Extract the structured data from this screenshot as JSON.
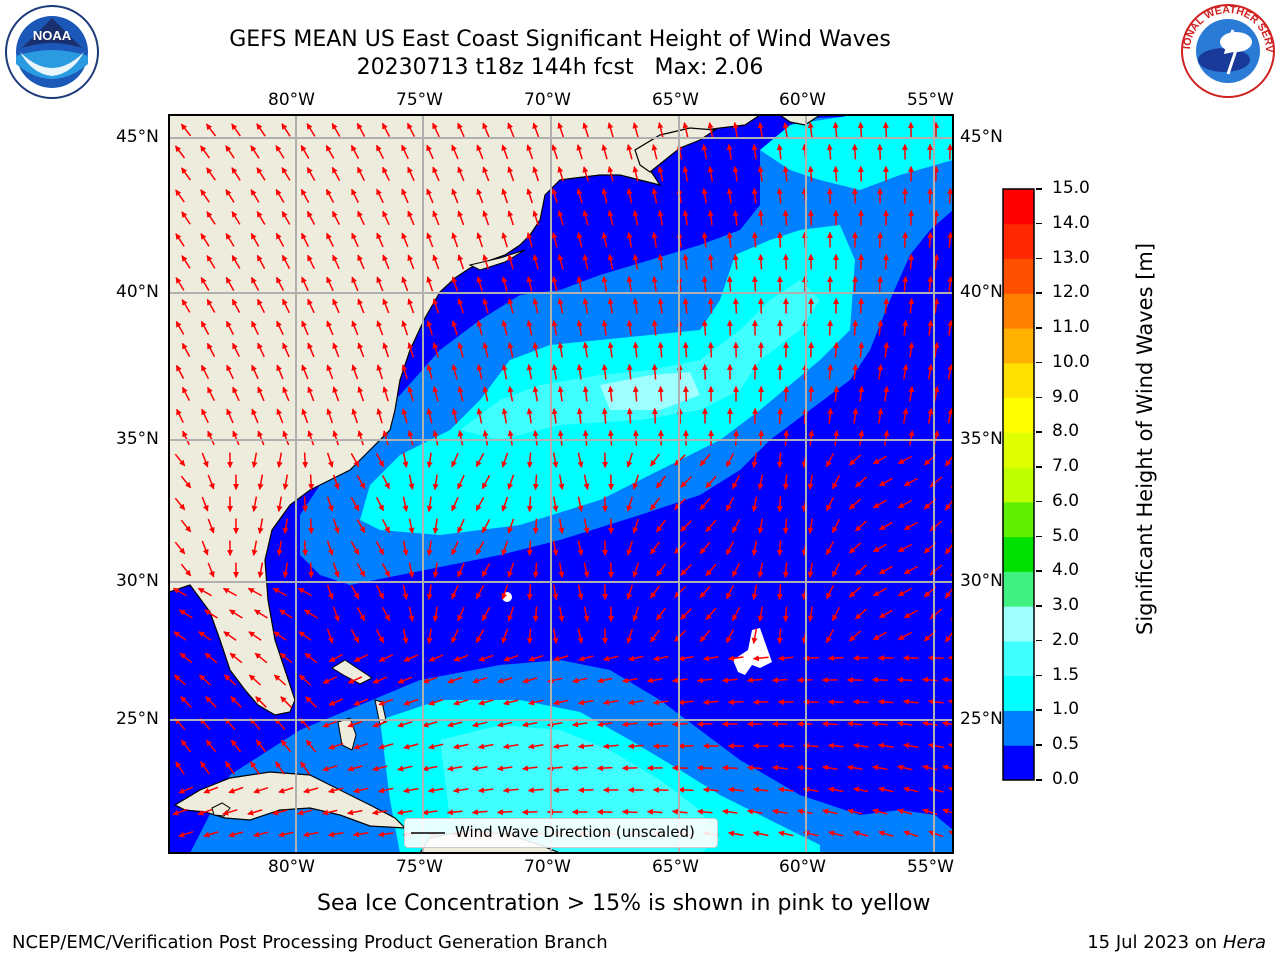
{
  "header": {
    "title_line1": "GEFS MEAN US East Coast Significant Height of Wind Waves",
    "title_line2": "20230713 t18z 144h fcst   Max: 2.06"
  },
  "logos": {
    "noaa": {
      "text": "NOAA",
      "ring_text": "NATIONAL OCEANIC AND ATMOSPHERIC ADMINISTRATION · U.S. DEPARTMENT OF COMMERCE"
    },
    "nws": {
      "ring_text": "NATIONAL WEATHER SERVICE"
    }
  },
  "map": {
    "lon_labels": [
      "80°W",
      "75°W",
      "70°W",
      "65°W",
      "60°W",
      "55°W"
    ],
    "lat_labels": [
      "45°N",
      "40°N",
      "35°N",
      "30°N",
      "25°N"
    ],
    "legend_text": "Wind Wave Direction (unscaled)",
    "land_color": "#eeecdc",
    "vector_color": "#ff0000",
    "grid_color": "#b0b0b0",
    "isolated_max_area": "white patches near 27°N 62°W and 29.5°N 72°W"
  },
  "colorbar": {
    "label": "Significant Height of Wind Waves [m]",
    "ticks": [
      "0.0",
      "0.5",
      "1.0",
      "1.5",
      "2.0",
      "3.0",
      "4.0",
      "5.0",
      "6.0",
      "7.0",
      "8.0",
      "9.0",
      "10.0",
      "11.0",
      "12.0",
      "13.0",
      "14.0",
      "15.0"
    ],
    "colors": [
      "#0000ff",
      "#0080ff",
      "#00ffff",
      "#40ffff",
      "#a0ffff",
      "#40f080",
      "#00e000",
      "#60f000",
      "#c0ff00",
      "#e0ff00",
      "#ffff00",
      "#ffe000",
      "#ffb000",
      "#ff8000",
      "#ff5000",
      "#ff2800",
      "#ff0000"
    ]
  },
  "footer": {
    "ice_note": "Sea Ice Concentration > 15% is shown in pink to yellow",
    "credit": "NCEP/EMC/Verification Post Processing Product Generation Branch",
    "date_prefix": "15 Jul 2023 on ",
    "machine": "Hera"
  }
}
